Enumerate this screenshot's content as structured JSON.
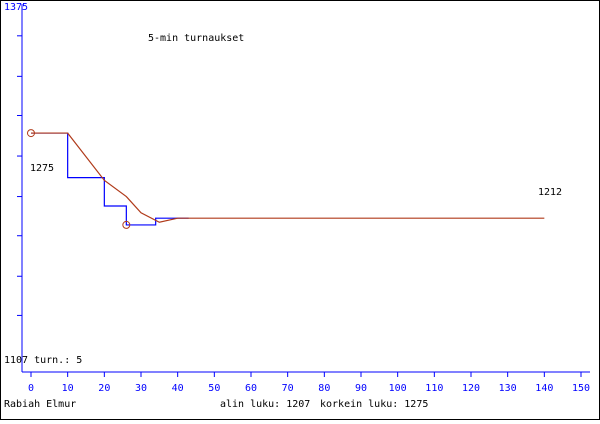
{
  "chart_data": {
    "type": "line",
    "title": "5-min turnaukset",
    "xlim": [
      0,
      150
    ],
    "xticks": [
      0,
      10,
      20,
      30,
      40,
      50,
      60,
      70,
      80,
      90,
      100,
      110,
      120,
      130,
      140,
      150
    ],
    "ylim": [
      1107,
      1375
    ],
    "yticks": [
      1375,
      {
        "value": 1107,
        "label": "1107 turn.: 5"
      }
    ],
    "yminor": [
      1347,
      1317,
      1288,
      1258,
      1228,
      1199,
      1169,
      1140
    ],
    "series": [
      {
        "name": "blue",
        "color": "#0000ff",
        "x": [
          0,
          10,
          10,
          20,
          20,
          26,
          26,
          34,
          34,
          43
        ],
        "values": [
          1275,
          1275,
          1242,
          1242,
          1221,
          1221,
          1207,
          1207,
          1212,
          1212
        ]
      },
      {
        "name": "brown",
        "color": "#b03a1a",
        "x": [
          0,
          10,
          20,
          26,
          30,
          35,
          40,
          140
        ],
        "values": [
          1275,
          1275,
          1240,
          1228,
          1216,
          1209,
          1212,
          1212
        ]
      }
    ],
    "markers": {
      "x": [
        0,
        26
      ],
      "values": [
        1275,
        1207
      ]
    },
    "start_label": 1275,
    "end_label": 1212,
    "player": "Rabiah Elmur",
    "low": "alin luku: 1207",
    "high": "korkein luku: 1275"
  }
}
